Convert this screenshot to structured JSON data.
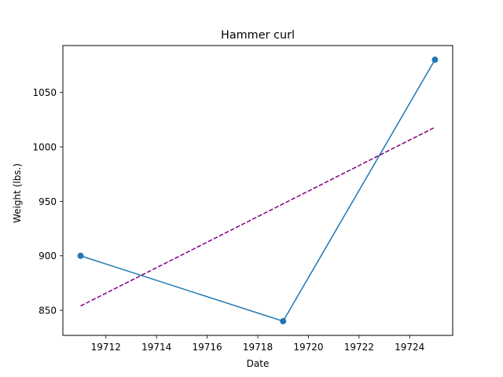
{
  "chart_data": {
    "type": "line",
    "title": "Hammer curl",
    "xlabel": "Date",
    "ylabel": "Weight (lbs.)",
    "xlim": [
      19710.3,
      19725.7
    ],
    "ylim": [
      827,
      1093
    ],
    "x_ticks": [
      19712,
      19714,
      19716,
      19718,
      19720,
      19722,
      19724
    ],
    "y_ticks": [
      850,
      900,
      950,
      1000,
      1050
    ],
    "grid": false,
    "series": [
      {
        "style": "solid-markers",
        "color": "#1f77b4",
        "x": [
          19711,
          19719,
          19725
        ],
        "y": [
          900,
          840,
          1080
        ]
      },
      {
        "style": "dashed",
        "color": "#800080",
        "x": [
          19711,
          19725
        ],
        "y": [
          854,
          1018
        ]
      }
    ]
  }
}
